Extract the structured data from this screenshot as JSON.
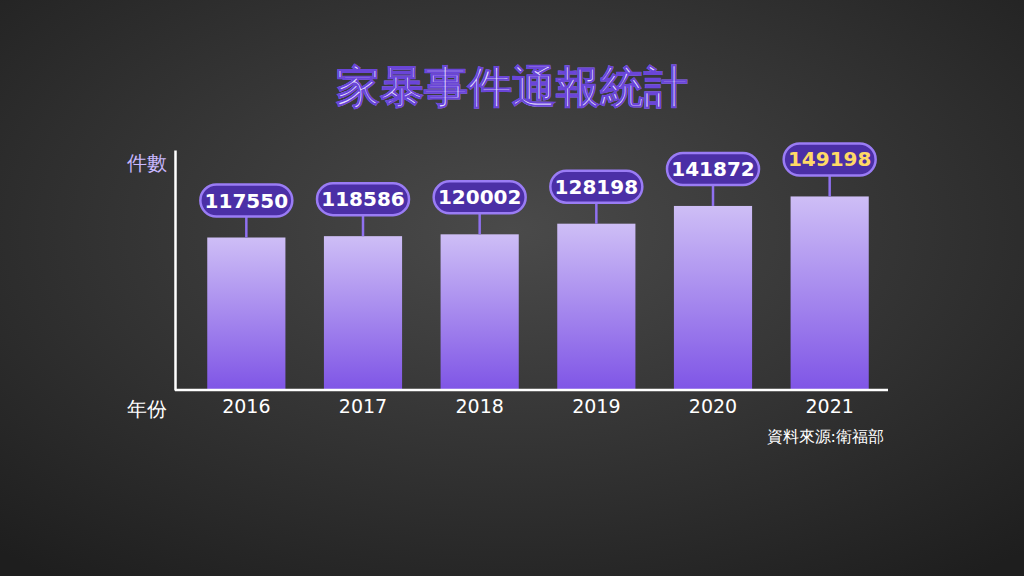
{
  "chart_data": {
    "type": "bar",
    "title": "家暴事件通報統計",
    "y_label": "件數",
    "x_label": "年份",
    "source": "資料來源:衛福部",
    "categories": [
      "2016",
      "2017",
      "2018",
      "2019",
      "2020",
      "2021"
    ],
    "values": [
      117550,
      118586,
      120002,
      128198,
      141872,
      149198
    ],
    "color": "#7f55e6",
    "ylim": [
      0,
      185000
    ],
    "yticks": [],
    "grid": false,
    "data_labels": true,
    "tick_labels": "x"
  }
}
